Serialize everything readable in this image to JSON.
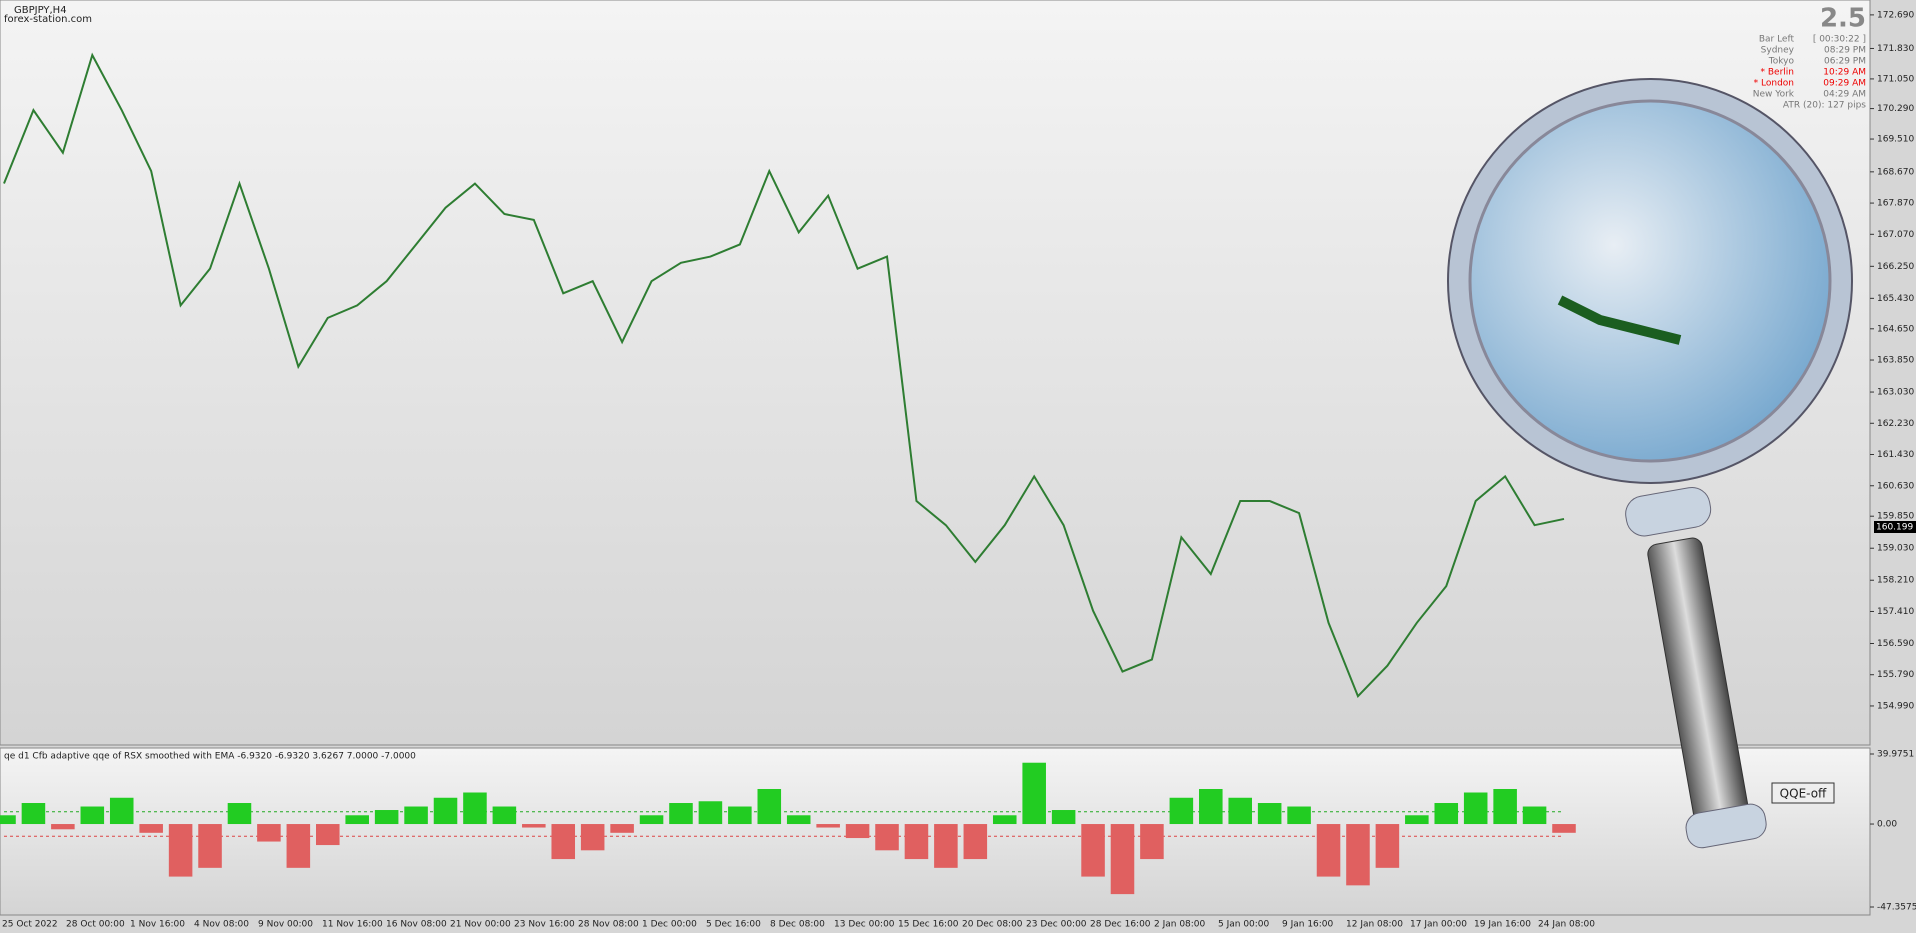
{
  "header": {
    "symbol": "GBPJPY,H4",
    "site": "forex-station.com"
  },
  "info_panel": {
    "spread": "2.5",
    "rows": [
      [
        "Bar Left",
        "[ 00:30:22 ]"
      ],
      [
        "Sydney",
        "08:29 PM"
      ],
      [
        "Tokyo",
        "06:29 PM"
      ],
      [
        "* Berlin",
        "10:29 AM"
      ],
      [
        "* London",
        "09:29 AM"
      ],
      [
        "New York",
        "04:29 AM"
      ]
    ],
    "atr": "ATR (20): 127 pips"
  },
  "current_price": "160.199",
  "button": "QQE-off",
  "time_labels": [
    "25 Oct 2022",
    "28 Oct 00:00",
    "1 Nov 16:00",
    "4 Nov 08:00",
    "9 Nov 00:00",
    "11 Nov 16:00",
    "16 Nov 08:00",
    "21 Nov 00:00",
    "23 Nov 16:00",
    "28 Nov 08:00",
    "1 Dec 00:00",
    "5 Dec 16:00",
    "8 Dec 08:00",
    "13 Dec 00:00",
    "15 Dec 16:00",
    "20 Dec 08:00",
    "23 Dec 00:00",
    "28 Dec 16:00",
    "2 Jan 08:00",
    "5 Jan 00:00",
    "9 Jan 16:00",
    "12 Jan 08:00",
    "17 Jan 00:00",
    "19 Jan 16:00",
    "24 Jan 08:00"
  ],
  "chart_data": [
    {
      "type": "line",
      "color": "#2e7d32",
      "values": [
        168.37,
        170.25,
        169.16,
        171.66,
        170.25,
        168.69,
        165.25,
        166.19,
        168.37,
        166.19,
        163.68,
        164.93,
        165.25,
        165.87,
        166.81,
        167.75,
        168.37,
        167.59,
        167.44,
        165.56,
        165.87,
        164.31,
        165.87,
        166.34,
        166.5,
        166.81,
        168.69,
        167.12,
        168.06,
        166.19,
        166.5,
        160.24,
        159.62,
        158.68,
        159.62,
        160.87,
        159.62,
        157.43,
        155.87,
        156.18,
        159.31,
        158.37,
        160.24,
        160.24,
        159.93,
        157.12,
        155.24,
        156.02,
        157.12,
        158.06,
        160.24,
        160.87,
        159.62,
        159.78
      ],
      "ylim": [
        153.99,
        173.02
      ],
      "yticks": [
        {
          "value": 172.69,
          "label": "172.690"
        },
        {
          "value": 171.83,
          "label": "171.830"
        },
        {
          "value": 171.05,
          "label": "171.050"
        },
        {
          "value": 170.29,
          "label": "170.290"
        },
        {
          "value": 169.51,
          "label": "169.510"
        },
        {
          "value": 168.67,
          "label": "168.670"
        },
        {
          "value": 167.87,
          "label": "167.870"
        },
        {
          "value": 167.07,
          "label": "167.070"
        },
        {
          "value": 166.25,
          "label": "166.250"
        },
        {
          "value": 165.43,
          "label": "165.430"
        },
        {
          "value": 164.65,
          "label": "164.650"
        },
        {
          "value": 163.85,
          "label": "163.850"
        },
        {
          "value": 163.03,
          "label": "163.030"
        },
        {
          "value": 162.23,
          "label": "162.230"
        },
        {
          "value": 161.43,
          "label": "161.430"
        },
        {
          "value": 160.63,
          "label": "160.630"
        },
        {
          "value": 159.85,
          "label": "159.850"
        },
        {
          "value": 159.03,
          "label": "159.030"
        },
        {
          "value": 158.21,
          "label": "158.210"
        },
        {
          "value": 157.41,
          "label": "157.410"
        },
        {
          "value": 156.59,
          "label": "156.590"
        },
        {
          "value": 155.79,
          "label": "155.790"
        },
        {
          "value": 154.99,
          "label": "154.990"
        }
      ]
    },
    {
      "type": "bar",
      "title": "qe d1 Cfb adaptive qqe of RSX smoothed with EMA -6.9320 -6.9320 3.6267 7.0000 -7.0000",
      "positive_color": "#22cc22",
      "negative_color": "#e06060",
      "values": [
        5,
        12,
        -3,
        10,
        15,
        -5,
        -30,
        -25,
        12,
        -10,
        -25,
        -12,
        5,
        8,
        10,
        15,
        18,
        10,
        -2,
        -20,
        -15,
        -5,
        5,
        12,
        13,
        10,
        20,
        5,
        -2,
        -8,
        -15,
        -20,
        -25,
        -20,
        5,
        35,
        8,
        -30,
        -40,
        -20,
        15,
        20,
        15,
        12,
        10,
        -30,
        -35,
        -25,
        5,
        12,
        18,
        20,
        10,
        -5
      ],
      "levels": [
        7,
        -7
      ],
      "ylim": [
        -51.92,
        43.4
      ],
      "yticks": [
        39.9751,
        {
          "value": 0,
          "label": "0.00"
        },
        -47.3575
      ]
    }
  ]
}
